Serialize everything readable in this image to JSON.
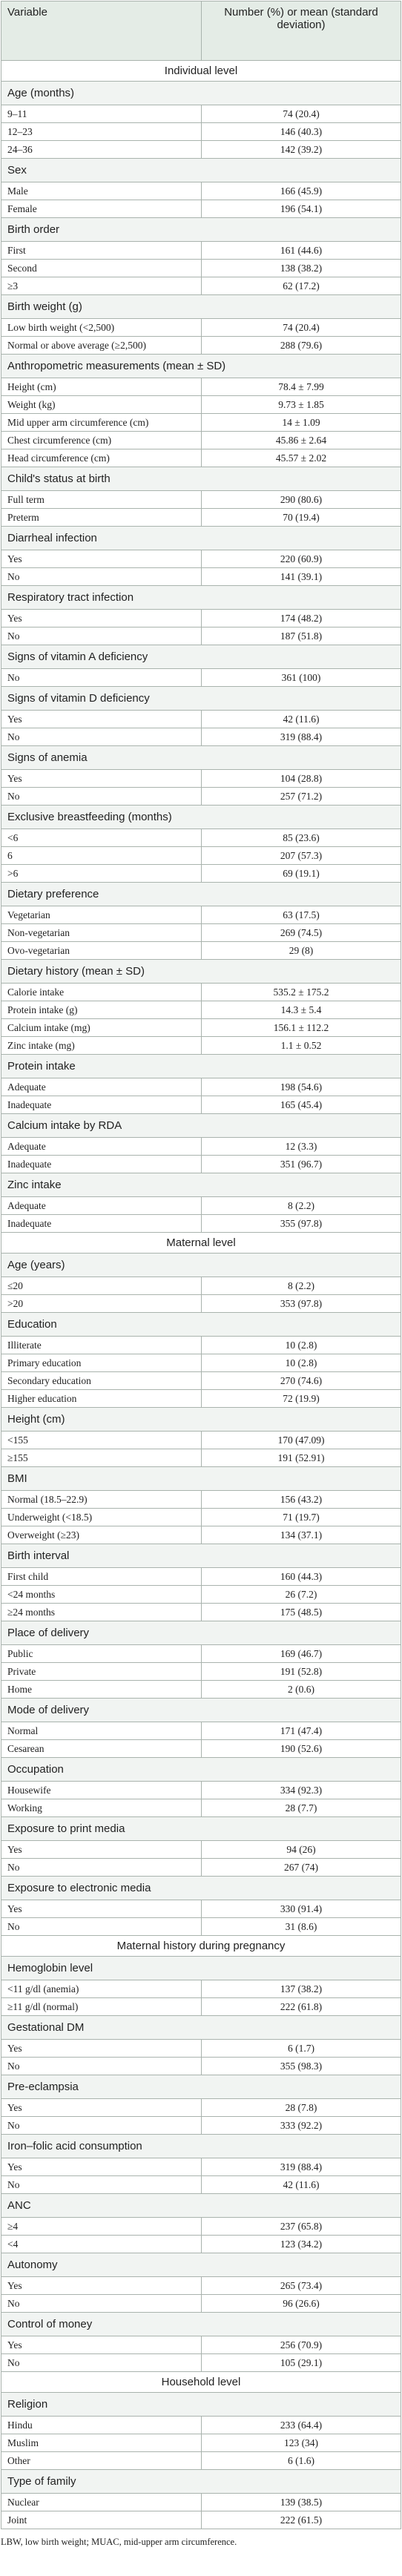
{
  "header": {
    "variable": "Variable",
    "value": "Number (%) or mean (standard deviation)"
  },
  "sections": [
    {
      "title": "Individual level",
      "groups": [
        {
          "title": "Age (months)",
          "rows": [
            [
              "9–11",
              "74 (20.4)"
            ],
            [
              "12–23",
              "146 (40.3)"
            ],
            [
              "24–36",
              "142 (39.2)"
            ]
          ]
        },
        {
          "title": "Sex",
          "rows": [
            [
              "Male",
              "166 (45.9)"
            ],
            [
              "Female",
              "196 (54.1)"
            ]
          ]
        },
        {
          "title": "Birth order",
          "rows": [
            [
              "First",
              "161 (44.6)"
            ],
            [
              "Second",
              "138 (38.2)"
            ],
            [
              "≥3",
              "62 (17.2)"
            ]
          ]
        },
        {
          "title": "Birth weight (g)",
          "rows": [
            [
              "Low birth weight (<2,500)",
              "74 (20.4)"
            ],
            [
              "Normal or above average (≥2,500)",
              "288 (79.6)"
            ]
          ]
        },
        {
          "title": "Anthropometric measurements (mean ± SD)",
          "rows": [
            [
              "Height (cm)",
              "78.4 ± 7.99"
            ],
            [
              "Weight (kg)",
              "9.73 ± 1.85"
            ],
            [
              "Mid upper arm circumference (cm)",
              "14 ± 1.09"
            ],
            [
              "Chest circumference (cm)",
              "45.86 ± 2.64"
            ],
            [
              "Head circumference (cm)",
              "45.57 ± 2.02"
            ]
          ]
        },
        {
          "title": "Child's status at birth",
          "rows": [
            [
              "Full term",
              "290 (80.6)"
            ],
            [
              "Preterm",
              "70 (19.4)"
            ]
          ]
        },
        {
          "title": "Diarrheal infection",
          "rows": [
            [
              "Yes",
              "220 (60.9)"
            ],
            [
              "No",
              "141 (39.1)"
            ]
          ]
        },
        {
          "title": "Respiratory tract infection",
          "rows": [
            [
              "Yes",
              "174 (48.2)"
            ],
            [
              "No",
              "187 (51.8)"
            ]
          ]
        },
        {
          "title": "Signs of vitamin A deficiency",
          "rows": [
            [
              "No",
              "361 (100)"
            ]
          ]
        },
        {
          "title": "Signs of vitamin D deficiency",
          "rows": [
            [
              "Yes",
              "42 (11.6)"
            ],
            [
              "No",
              "319 (88.4)"
            ]
          ]
        },
        {
          "title": "Signs of anemia",
          "rows": [
            [
              "Yes",
              "104 (28.8)"
            ],
            [
              "No",
              "257 (71.2)"
            ]
          ]
        },
        {
          "title": "Exclusive breastfeeding (months)",
          "rows": [
            [
              "<6",
              "85 (23.6)"
            ],
            [
              "6",
              "207 (57.3)"
            ],
            [
              ">6",
              "69 (19.1)"
            ]
          ]
        },
        {
          "title": "Dietary preference",
          "rows": [
            [
              "Vegetarian",
              "63 (17.5)"
            ],
            [
              "Non-vegetarian",
              "269 (74.5)"
            ],
            [
              "Ovo-vegetarian",
              "29 (8)"
            ]
          ]
        },
        {
          "title": "Dietary history (mean ± SD)",
          "rows": [
            [
              "Calorie intake",
              "535.2 ± 175.2"
            ],
            [
              "Protein intake (g)",
              "14.3 ± 5.4"
            ],
            [
              "Calcium intake (mg)",
              "156.1 ± 112.2"
            ],
            [
              "Zinc intake (mg)",
              "1.1 ± 0.52"
            ]
          ]
        },
        {
          "title": "Protein intake",
          "rows": [
            [
              "Adequate",
              "198 (54.6)"
            ],
            [
              "Inadequate",
              "165 (45.4)"
            ]
          ]
        },
        {
          "title": "Calcium intake by RDA",
          "rows": [
            [
              "Adequate",
              "12 (3.3)"
            ],
            [
              "Inadequate",
              "351 (96.7)"
            ]
          ]
        },
        {
          "title": "Zinc intake",
          "rows": [
            [
              "Adequate",
              "8 (2.2)"
            ],
            [
              "Inadequate",
              "355 (97.8)"
            ]
          ]
        }
      ]
    },
    {
      "title": "Maternal level",
      "groups": [
        {
          "title": "Age (years)",
          "rows": [
            [
              "≤20",
              "8 (2.2)"
            ],
            [
              ">20",
              "353 (97.8)"
            ]
          ]
        },
        {
          "title": "Education",
          "rows": [
            [
              "Illiterate",
              "10 (2.8)"
            ],
            [
              "Primary education",
              "10 (2.8)"
            ],
            [
              "Secondary education",
              "270 (74.6)"
            ],
            [
              "Higher education",
              "72 (19.9)"
            ]
          ]
        },
        {
          "title": "Height (cm)",
          "rows": [
            [
              "<155",
              "170 (47.09)"
            ],
            [
              "≥155",
              "191 (52.91)"
            ]
          ]
        },
        {
          "title": "BMI",
          "rows": [
            [
              "Normal (18.5–22.9)",
              "156 (43.2)"
            ],
            [
              "Underweight (<18.5)",
              "71 (19.7)"
            ],
            [
              "Overweight (≥23)",
              "134 (37.1)"
            ]
          ]
        },
        {
          "title": "Birth interval",
          "rows": [
            [
              "First child",
              "160 (44.3)"
            ],
            [
              "<24 months",
              "26 (7.2)"
            ],
            [
              "≥24 months",
              "175 (48.5)"
            ]
          ]
        },
        {
          "title": "Place of delivery",
          "rows": [
            [
              "Public",
              "169 (46.7)"
            ],
            [
              "Private",
              "191 (52.8)"
            ],
            [
              "Home",
              "2 (0.6)"
            ]
          ]
        },
        {
          "title": "Mode of delivery",
          "rows": [
            [
              "Normal",
              "171 (47.4)"
            ],
            [
              "Cesarean",
              "190 (52.6)"
            ]
          ]
        },
        {
          "title": "Occupation",
          "rows": [
            [
              "Housewife",
              "334 (92.3)"
            ],
            [
              "Working",
              "28 (7.7)"
            ]
          ]
        },
        {
          "title": "Exposure to print media",
          "rows": [
            [
              "Yes",
              "94 (26)"
            ],
            [
              "No",
              "267 (74)"
            ]
          ]
        },
        {
          "title": "Exposure to electronic media",
          "rows": [
            [
              "Yes",
              "330 (91.4)"
            ],
            [
              "No",
              "31 (8.6)"
            ]
          ]
        }
      ]
    },
    {
      "title": "Maternal history during pregnancy",
      "groups": [
        {
          "title": "Hemoglobin level",
          "rows": [
            [
              "<11 g/dl (anemia)",
              "137 (38.2)"
            ],
            [
              "≥11 g/dl (normal)",
              "222 (61.8)"
            ]
          ]
        },
        {
          "title": "Gestational DM",
          "rows": [
            [
              "Yes",
              "6 (1.7)"
            ],
            [
              "No",
              "355 (98.3)"
            ]
          ]
        },
        {
          "title": "Pre-eclampsia",
          "rows": [
            [
              "Yes",
              "28 (7.8)"
            ],
            [
              "No",
              "333 (92.2)"
            ]
          ]
        },
        {
          "title": "Iron–folic acid consumption",
          "rows": [
            [
              "Yes",
              "319 (88.4)"
            ],
            [
              "No",
              "42 (11.6)"
            ]
          ]
        },
        {
          "title": "ANC",
          "rows": [
            [
              "≥4",
              "237 (65.8)"
            ],
            [
              "<4",
              "123 (34.2)"
            ]
          ]
        },
        {
          "title": "Autonomy",
          "rows": [
            [
              "Yes",
              "265 (73.4)"
            ],
            [
              "No",
              "96 (26.6)"
            ]
          ]
        },
        {
          "title": "Control of money",
          "rows": [
            [
              "Yes",
              "256 (70.9)"
            ],
            [
              "No",
              "105 (29.1)"
            ]
          ]
        }
      ]
    },
    {
      "title": "Household level",
      "groups": [
        {
          "title": "Religion",
          "rows": [
            [
              "Hindu",
              "233 (64.4)"
            ],
            [
              "Muslim",
              "123 (34)"
            ],
            [
              "Other",
              "6 (1.6)"
            ]
          ]
        },
        {
          "title": "Type of family",
          "rows": [
            [
              "Nuclear",
              "139 (38.5)"
            ],
            [
              "Joint",
              "222 (61.5)"
            ]
          ]
        }
      ]
    }
  ],
  "footnote": "LBW, low birth weight; MUAC, mid-upper arm circumference."
}
